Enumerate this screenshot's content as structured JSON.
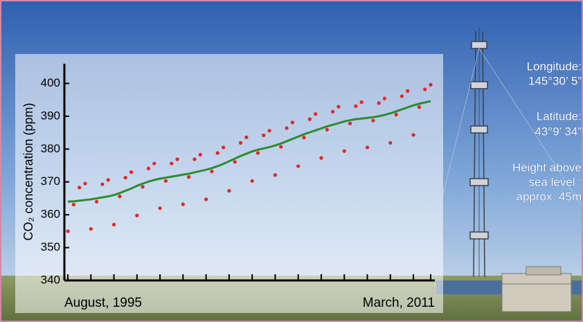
{
  "chart_data": {
    "type": "line",
    "y_label": "CO₂ concentration (ppm)",
    "categories": [
      "August, 1995",
      null,
      null,
      null,
      null,
      null,
      null,
      null,
      null,
      null,
      null,
      null,
      null,
      null,
      null,
      null,
      null,
      null,
      null,
      null,
      null,
      null,
      null,
      null,
      null,
      null,
      null,
      null,
      null,
      null,
      null,
      null,
      null,
      null,
      null,
      null,
      null,
      null,
      null,
      null,
      null,
      null,
      null,
      null,
      null,
      null,
      null,
      null,
      null,
      null,
      null,
      null,
      null,
      null,
      null,
      null,
      null,
      null,
      null,
      null,
      null,
      null,
      null,
      "March, 2011"
    ],
    "series": [
      {
        "color": "#e8231f",
        "marker": "dots",
        "values": [
          355.0,
          363.1,
          368.3,
          369.5,
          355.7,
          364.0,
          369.3,
          370.6,
          357.0,
          365.6,
          371.3,
          373.0,
          359.8,
          368.5,
          374.1,
          375.6,
          362.0,
          370.3,
          375.6,
          376.9,
          363.2,
          371.5,
          376.9,
          378.3,
          364.7,
          373.2,
          378.8,
          380.5,
          367.3,
          376.1,
          381.9,
          383.6,
          370.3,
          378.8,
          384.2,
          385.6,
          372.1,
          380.7,
          386.4,
          388.1,
          374.8,
          383.5,
          389.1,
          390.7,
          377.3,
          385.9,
          391.4,
          392.9,
          379.4,
          387.8,
          393.1,
          394.3,
          380.5,
          388.7,
          394.0,
          395.4,
          381.9,
          390.5,
          396.1,
          397.7,
          384.3,
          392.8,
          398.2,
          399.6
        ]
      },
      {
        "color": "#2e8b2e",
        "marker": "line",
        "values": [
          364.0,
          364.1,
          364.3,
          364.5,
          364.7,
          365.0,
          365.3,
          365.6,
          366.0,
          366.6,
          367.3,
          368.0,
          368.8,
          369.5,
          370.1,
          370.6,
          371.0,
          371.3,
          371.6,
          371.9,
          372.2,
          372.5,
          372.9,
          373.3,
          373.7,
          374.2,
          374.8,
          375.5,
          376.3,
          377.1,
          377.9,
          378.6,
          379.3,
          379.8,
          380.2,
          380.6,
          381.1,
          381.7,
          382.4,
          383.1,
          383.8,
          384.5,
          385.1,
          385.7,
          386.3,
          386.9,
          387.4,
          387.9,
          388.4,
          388.8,
          389.1,
          389.3,
          389.5,
          389.7,
          390.0,
          390.4,
          390.9,
          391.5,
          392.1,
          392.7,
          393.3,
          393.8,
          394.2,
          394.6
        ]
      }
    ],
    "ylim": [
      340,
      406
    ],
    "yticks": [
      340,
      350,
      360,
      370,
      380,
      390,
      400
    ],
    "grid": false
  },
  "site_info": {
    "longitude": [
      "Longitude:",
      "145°30’  5”"
    ],
    "latitude": [
      "Latitude:",
      "43°9’  34”"
    ],
    "height": [
      "Height above",
      "sea level :",
      "approx. 45m"
    ]
  }
}
